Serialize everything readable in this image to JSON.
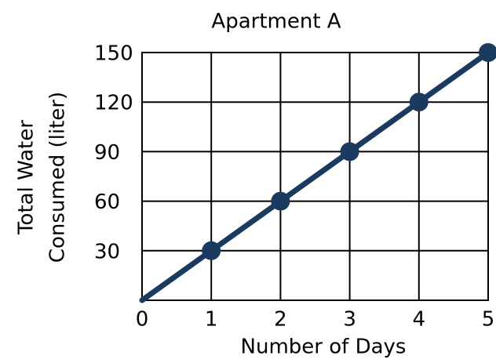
{
  "chart_data": {
    "type": "line",
    "title": "Apartment A",
    "xlabel": "Number of Days",
    "ylabel": [
      "Total Water",
      "Consumed (liter)"
    ],
    "x": [
      0,
      1,
      2,
      3,
      4,
      5
    ],
    "series": [
      {
        "name": "Apartment A",
        "color": "#1b3a5f",
        "values": [
          0,
          30,
          60,
          90,
          120,
          150
        ]
      }
    ],
    "xlim": [
      0,
      5
    ],
    "xticks": [
      0,
      1,
      2,
      3,
      4,
      5
    ],
    "ylim": [
      0,
      150
    ],
    "yticks": [
      30,
      60,
      90,
      120,
      150
    ],
    "grid": true
  }
}
